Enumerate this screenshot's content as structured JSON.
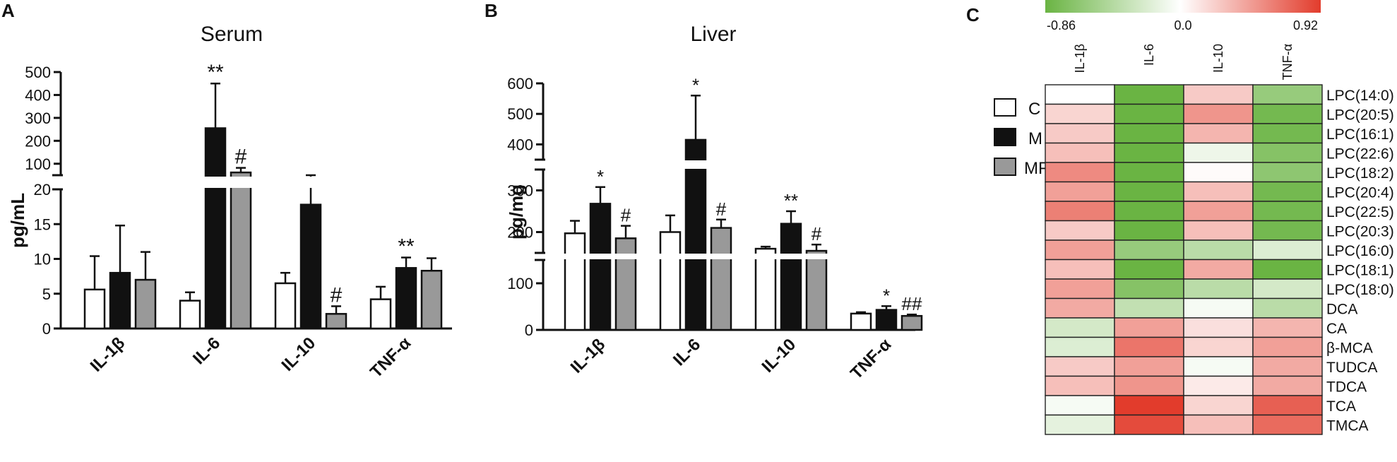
{
  "panels": {
    "a": {
      "letter": "A",
      "title": "Serum",
      "ylabel": "pg/mL"
    },
    "b": {
      "letter": "B",
      "title": "Liver",
      "ylabel": "pg/mg"
    },
    "c": {
      "letter": "C"
    }
  },
  "legend": {
    "items": [
      "C",
      "M",
      "MF"
    ]
  },
  "colors": {
    "C": "#ffffff",
    "M": "#111111",
    "MF": "#999999",
    "neg": "#6ab443",
    "mid": "#ffffff",
    "pos": "#e23c2c"
  },
  "chart_data": [
    {
      "type": "bar",
      "panel": "A",
      "title": "Serum",
      "ylabel": "pg/mL",
      "categories": [
        "IL-1β",
        "IL-6",
        "IL-10",
        "TNF-α"
      ],
      "series": [
        {
          "name": "C",
          "values": [
            5.6,
            4.0,
            6.5,
            4.2
          ],
          "errors": [
            4.8,
            1.2,
            1.5,
            1.8
          ]
        },
        {
          "name": "M",
          "values": [
            8.0,
            255,
            17.8,
            8.7
          ],
          "errors": [
            6.8,
            195,
            2.3,
            1.5
          ]
        },
        {
          "name": "MF",
          "values": [
            7.0,
            62,
            2.1,
            8.3
          ],
          "errors": [
            4.0,
            20,
            1.1,
            1.8
          ]
        }
      ],
      "annotations": [
        {
          "category": "IL-6",
          "series": "M",
          "text": "**"
        },
        {
          "category": "IL-6",
          "series": "MF",
          "text": "#"
        },
        {
          "category": "IL-10",
          "series": "MF",
          "text": "#"
        },
        {
          "category": "TNF-α",
          "series": "M",
          "text": "**"
        }
      ],
      "broken_axis": {
        "lower": [
          0,
          20
        ],
        "upper": [
          50,
          500
        ]
      },
      "yticks_lower": [
        0,
        5,
        10,
        15,
        20
      ],
      "yticks_upper": [
        100,
        200,
        300,
        400,
        500
      ]
    },
    {
      "type": "bar",
      "panel": "B",
      "title": "Liver",
      "ylabel": "pg/mg",
      "categories": [
        "IL-1β",
        "IL-6",
        "IL-10",
        "TNF-α"
      ],
      "series": [
        {
          "name": "C",
          "values": [
            197,
            200,
            160,
            35
          ],
          "errors": [
            30,
            40,
            5,
            3
          ]
        },
        {
          "name": "M",
          "values": [
            268,
            415,
            220,
            43
          ],
          "errors": [
            40,
            145,
            30,
            8
          ]
        },
        {
          "name": "MF",
          "values": [
            185,
            210,
            155,
            30
          ],
          "errors": [
            30,
            20,
            15,
            3
          ]
        }
      ],
      "annotations": [
        {
          "category": "IL-1β",
          "series": "M",
          "text": "*"
        },
        {
          "category": "IL-1β",
          "series": "MF",
          "text": "#"
        },
        {
          "category": "IL-6",
          "series": "M",
          "text": "*"
        },
        {
          "category": "IL-6",
          "series": "MF",
          "text": "#"
        },
        {
          "category": "IL-10",
          "series": "M",
          "text": "**"
        },
        {
          "category": "IL-10",
          "series": "MF",
          "text": "#"
        },
        {
          "category": "TNF-α",
          "series": "M",
          "text": "*"
        },
        {
          "category": "TNF-α",
          "series": "MF",
          "text": "##"
        }
      ],
      "broken_axis": {
        "lower": [
          0,
          150
        ],
        "middle": [
          150,
          350
        ],
        "upper": [
          350,
          600
        ]
      },
      "yticks_lower": [
        0,
        100
      ],
      "yticks_middle": [
        200,
        300
      ],
      "yticks_upper": [
        400,
        500,
        600
      ]
    },
    {
      "type": "heatmap",
      "panel": "C",
      "colorbar": {
        "min": -0.86,
        "mid": 0.0,
        "max": 0.92,
        "labels": [
          "-0.86",
          "0.0",
          "0.92"
        ]
      },
      "columns": [
        "IL-1β",
        "IL-6",
        "IL-10",
        "TNF-α"
      ],
      "rows": [
        "LPC(14:0)",
        "LPC(20:5)",
        "LPC(16:1)",
        "LPC(22:6)",
        "LPC(18:2)",
        "LPC(20:4)",
        "LPC(22:5)",
        "LPC(20:3)",
        "LPC(16:0)",
        "LPC(18:1)",
        "LPC(18:0)",
        "DCA",
        "CA",
        "β-MCA",
        "TUDCA",
        "TDCA",
        "TCA",
        "TMCA"
      ],
      "values": [
        [
          0.0,
          -0.86,
          0.25,
          -0.6
        ],
        [
          0.2,
          -0.86,
          0.5,
          -0.8
        ],
        [
          0.25,
          -0.86,
          0.35,
          -0.8
        ],
        [
          0.3,
          -0.86,
          -0.1,
          -0.7
        ],
        [
          0.55,
          -0.86,
          0.02,
          -0.65
        ],
        [
          0.45,
          -0.86,
          0.3,
          -0.8
        ],
        [
          0.6,
          -0.86,
          0.45,
          -0.8
        ],
        [
          0.25,
          -0.86,
          0.3,
          -0.8
        ],
        [
          0.45,
          -0.6,
          -0.4,
          -0.2
        ],
        [
          0.3,
          -0.86,
          0.4,
          -0.86
        ],
        [
          0.45,
          -0.7,
          -0.4,
          -0.25
        ],
        [
          0.4,
          -0.35,
          -0.05,
          -0.4
        ],
        [
          -0.25,
          0.45,
          0.15,
          0.35
        ],
        [
          -0.2,
          0.65,
          0.2,
          0.45
        ],
        [
          0.25,
          0.45,
          -0.05,
          0.4
        ],
        [
          0.3,
          0.5,
          0.1,
          0.4
        ],
        [
          -0.05,
          0.92,
          0.2,
          0.75
        ],
        [
          -0.15,
          0.85,
          0.3,
          0.7
        ]
      ]
    }
  ]
}
